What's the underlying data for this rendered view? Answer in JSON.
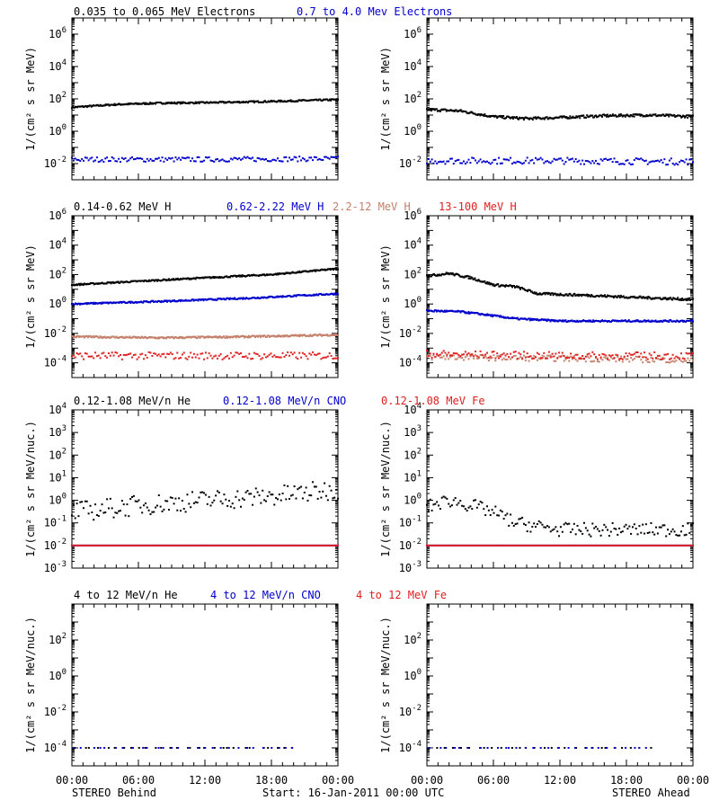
{
  "footer": {
    "left": "STEREO Behind",
    "center": "Start: 16-Jan-2011 00:00 UTC",
    "right": "STEREO Ahead"
  },
  "colors": {
    "black": "#000000",
    "blue": "#0000cc",
    "tan": "#c4806a",
    "red": "#e02020"
  },
  "x_ticks": [
    "00:00",
    "06:00",
    "12:00",
    "18:00",
    "00:00"
  ],
  "chart_data": [
    {
      "type": "scatter",
      "row": 0,
      "side": "behind",
      "ylabel": "1/(cm² s sr MeV)",
      "yscale": "log",
      "ylim_exp": [
        -3,
        7
      ],
      "ytick_exps": [
        -2,
        0,
        2,
        4,
        6
      ],
      "xlim_hours": [
        0,
        24
      ],
      "series": [
        {
          "name": "0.035 to 0.065 MeV Electrons",
          "color": "#000000",
          "anchors": [
            [
              0,
              30
            ],
            [
              4,
              45
            ],
            [
              8,
              55
            ],
            [
              12,
              58
            ],
            [
              16,
              65
            ],
            [
              20,
              75
            ],
            [
              24,
              90
            ]
          ],
          "spread": 0.05,
          "mode": "line"
        },
        {
          "name": "0.7 to 4.0 Mev Electrons",
          "color": "#0000cc",
          "anchors": [
            [
              0,
              0.018
            ],
            [
              12,
              0.018
            ],
            [
              24,
              0.02
            ]
          ],
          "spread": 0.15,
          "mode": "dots"
        }
      ]
    },
    {
      "type": "scatter",
      "row": 0,
      "side": "ahead",
      "ylabel": "1/(cm² s sr MeV)",
      "yscale": "log",
      "ylim_exp": [
        -3,
        7
      ],
      "ytick_exps": [
        -2,
        0,
        2,
        4,
        6
      ],
      "xlim_hours": [
        0,
        24
      ],
      "series": [
        {
          "name": "",
          "color": "#000000",
          "anchors": [
            [
              0,
              22
            ],
            [
              3,
              18
            ],
            [
              6,
              8
            ],
            [
              9,
              6
            ],
            [
              12,
              7
            ],
            [
              16,
              9
            ],
            [
              20,
              10
            ],
            [
              24,
              8
            ]
          ],
          "spread": 0.08,
          "mode": "line"
        },
        {
          "name": "",
          "color": "#0000cc",
          "anchors": [
            [
              0,
              0.015
            ],
            [
              12,
              0.015
            ],
            [
              24,
              0.013
            ]
          ],
          "spread": 0.2,
          "mode": "dots"
        }
      ]
    },
    {
      "type": "scatter",
      "row": 1,
      "side": "behind",
      "ylabel": "1/(cm² s sr MeV)",
      "yscale": "log",
      "ylim_exp": [
        -5,
        6
      ],
      "ytick_exps": [
        -4,
        -2,
        0,
        2,
        4,
        6
      ],
      "xlim_hours": [
        0,
        24
      ],
      "series": [
        {
          "name": "0.14-0.62 MeV H",
          "color": "#000000",
          "anchors": [
            [
              0,
              20
            ],
            [
              6,
              35
            ],
            [
              12,
              60
            ],
            [
              18,
              100
            ],
            [
              24,
              250
            ]
          ],
          "spread": 0.05,
          "mode": "line"
        },
        {
          "name": "0.62-2.22 MeV H",
          "color": "#0000cc",
          "anchors": [
            [
              0,
              1
            ],
            [
              8,
              1.5
            ],
            [
              16,
              2.5
            ],
            [
              24,
              5
            ]
          ],
          "spread": 0.05,
          "mode": "line"
        },
        {
          "name": "2.2-12 MeV H",
          "color": "#c4806a",
          "anchors": [
            [
              0,
              0.006
            ],
            [
              8,
              0.005
            ],
            [
              16,
              0.006
            ],
            [
              24,
              0.008
            ]
          ],
          "spread": 0.06,
          "mode": "line"
        },
        {
          "name": "13-100 MeV H",
          "color": "#e02020",
          "anchors": [
            [
              0,
              0.0003
            ],
            [
              12,
              0.0003
            ],
            [
              24,
              0.0003
            ]
          ],
          "spread": 0.25,
          "mode": "dots"
        }
      ]
    },
    {
      "type": "scatter",
      "row": 1,
      "side": "ahead",
      "ylabel": "1/(cm² s sr MeV)",
      "yscale": "log",
      "ylim_exp": [
        -5,
        6
      ],
      "ytick_exps": [
        -4,
        -2,
        0,
        2,
        4,
        6
      ],
      "xlim_hours": [
        0,
        24
      ],
      "series": [
        {
          "name": "",
          "color": "#000000",
          "anchors": [
            [
              0,
              80
            ],
            [
              2,
              120
            ],
            [
              4,
              60
            ],
            [
              6,
              20
            ],
            [
              8,
              15
            ],
            [
              10,
              5
            ],
            [
              14,
              4
            ],
            [
              18,
              3
            ],
            [
              24,
              2
            ]
          ],
          "spread": 0.08,
          "mode": "line"
        },
        {
          "name": "",
          "color": "#0000cc",
          "anchors": [
            [
              0,
              0.35
            ],
            [
              3,
              0.3
            ],
            [
              5,
              0.2
            ],
            [
              8,
              0.1
            ],
            [
              12,
              0.07
            ],
            [
              18,
              0.07
            ],
            [
              24,
              0.07
            ]
          ],
          "spread": 0.06,
          "mode": "line"
        },
        {
          "name": "",
          "color": "#c4806a",
          "anchors": [
            [
              0,
              0.00025
            ],
            [
              12,
              0.0002
            ],
            [
              24,
              0.00015
            ]
          ],
          "spread": 0.2,
          "mode": "dots"
        },
        {
          "name": "",
          "color": "#e02020",
          "anchors": [
            [
              0,
              0.0004
            ],
            [
              12,
              0.0003
            ],
            [
              24,
              0.0003
            ]
          ],
          "spread": 0.25,
          "mode": "dots"
        }
      ]
    },
    {
      "type": "scatter",
      "row": 2,
      "side": "behind",
      "ylabel": "1/(cm² s sr MeV/nuc.)",
      "yscale": "log",
      "ylim_exp": [
        -3,
        4
      ],
      "ytick_exps": [
        -3,
        -2,
        -1,
        0,
        1,
        2,
        3,
        4
      ],
      "xlim_hours": [
        0,
        24
      ],
      "series": [
        {
          "name": "0.12-1.08 MeV/n He",
          "color": "#000000",
          "anchors": [
            [
              0,
              0.3
            ],
            [
              6,
              0.6
            ],
            [
              12,
              1
            ],
            [
              18,
              1.5
            ],
            [
              24,
              3
            ]
          ],
          "spread": 0.45,
          "mode": "dots"
        },
        {
          "name": "0.12-1.08 MeV/n CNO",
          "color": "#0000cc",
          "anchors": [
            [
              0,
              0.01
            ],
            [
              24,
              0.01
            ]
          ],
          "spread": 0.0,
          "mode": "dots"
        },
        {
          "name": "0.12-1.08 MeV Fe",
          "color": "#e02020",
          "anchors": [
            [
              0,
              0.01
            ],
            [
              24,
              0.01
            ]
          ],
          "spread": 0.0,
          "mode": "dots"
        }
      ]
    },
    {
      "type": "scatter",
      "row": 2,
      "side": "ahead",
      "ylabel": "1/(cm² s sr MeV/nuc.)",
      "yscale": "log",
      "ylim_exp": [
        -3,
        4
      ],
      "ytick_exps": [
        -3,
        -2,
        -1,
        0,
        1,
        2,
        3,
        4
      ],
      "xlim_hours": [
        0,
        24
      ],
      "series": [
        {
          "name": "",
          "color": "#000000",
          "anchors": [
            [
              0,
              0.5
            ],
            [
              2,
              1
            ],
            [
              4,
              0.6
            ],
            [
              6,
              0.3
            ],
            [
              8,
              0.1
            ],
            [
              12,
              0.05
            ],
            [
              24,
              0.05
            ]
          ],
          "spread": 0.3,
          "mode": "dots"
        },
        {
          "name": "",
          "color": "#0000cc",
          "anchors": [
            [
              0,
              0.01
            ],
            [
              24,
              0.01
            ]
          ],
          "spread": 0.0,
          "mode": "dots"
        },
        {
          "name": "",
          "color": "#e02020",
          "anchors": [
            [
              0,
              0.01
            ],
            [
              6,
              0.01
            ]
          ],
          "spread": 0.0,
          "mode": "dots"
        }
      ]
    },
    {
      "type": "scatter",
      "row": 3,
      "side": "behind",
      "ylabel": "1/(cm² s sr MeV/nuc.)",
      "yscale": "log",
      "ylim_exp": [
        -5,
        4
      ],
      "ytick_exps": [
        -4,
        -2,
        0,
        2
      ],
      "xlim_hours": [
        0,
        24
      ],
      "series": [
        {
          "name": "4 to 12 MeV/n He",
          "color": "#000000",
          "anchors": [
            [
              0,
              0.0001
            ],
            [
              24,
              0.0001
            ]
          ],
          "spread": 0.0,
          "mode": "sparse"
        },
        {
          "name": "4 to 12 MeV/n CNO",
          "color": "#0000cc",
          "anchors": [
            [
              0,
              0.0001
            ],
            [
              24,
              0.0001
            ]
          ],
          "spread": 0.0,
          "mode": "sparse"
        },
        {
          "name": "4 to 12 MeV Fe",
          "color": "#e02020",
          "anchors": [
            [
              0,
              0.0001
            ],
            [
              24,
              0.0001
            ]
          ],
          "spread": 0.0,
          "mode": "none"
        }
      ]
    },
    {
      "type": "scatter",
      "row": 3,
      "side": "ahead",
      "ylabel": "1/(cm² s sr MeV/nuc.)",
      "yscale": "log",
      "ylim_exp": [
        -5,
        4
      ],
      "ytick_exps": [
        -4,
        -2,
        0,
        2
      ],
      "xlim_hours": [
        0,
        24
      ],
      "series": [
        {
          "name": "",
          "color": "#000000",
          "anchors": [
            [
              0,
              0.0001
            ],
            [
              24,
              0.0001
            ]
          ],
          "spread": 0.0,
          "mode": "sparse"
        },
        {
          "name": "",
          "color": "#0000cc",
          "anchors": [
            [
              0,
              0.0001
            ],
            [
              24,
              0.0001
            ]
          ],
          "spread": 0.0,
          "mode": "sparse"
        }
      ]
    }
  ]
}
